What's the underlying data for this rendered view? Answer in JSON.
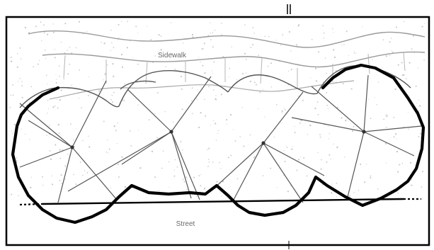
{
  "labels": {
    "sidewalk": "Sidewalk",
    "street": "Street"
  },
  "colors": {
    "frame": "#000000",
    "tree_outline": "#000000",
    "branch_lines": "#555555",
    "sidewalk_edges": "#9a9a9a",
    "sidewalk_joints": "#b5b5b5",
    "stipple": "#c8c8c8",
    "label_text": "#6a6a6a"
  }
}
